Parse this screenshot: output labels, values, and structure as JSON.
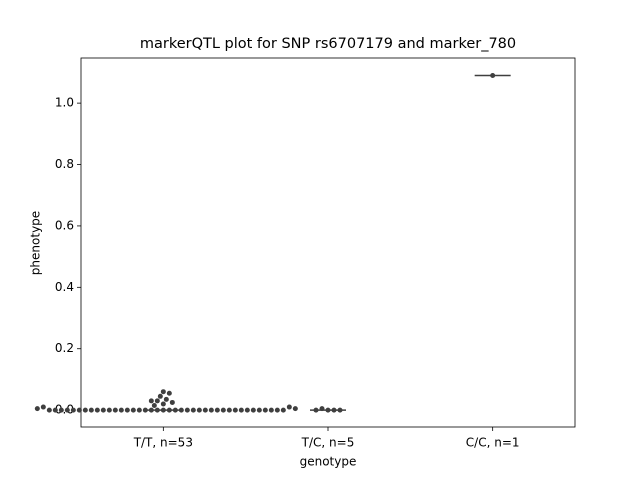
{
  "chart_data": {
    "type": "swarm",
    "title": "markerQTL plot for SNP rs6707179 and marker_780",
    "x_label": "genotype",
    "y_label": "phenotype",
    "categories": [
      "T/T, n=53",
      "T/C, n=5",
      "C/C, n=1"
    ],
    "values": [
      [
        0,
        0,
        0,
        0,
        0,
        0,
        0,
        0,
        0,
        0,
        0,
        0,
        0,
        0,
        0,
        0,
        0,
        0,
        0,
        0,
        0,
        0,
        0,
        0,
        0,
        0,
        0,
        0,
        0,
        0,
        0,
        0,
        0,
        0,
        0,
        0,
        0,
        0,
        0,
        0,
        0.06,
        0.055,
        0.045,
        0.035,
        0.03,
        0.025,
        0.02,
        0.015,
        0.01,
        0.01,
        0.005,
        0.005,
        0.03
      ],
      [
        0,
        0,
        0.005,
        0,
        0
      ],
      [
        1.09
      ]
    ],
    "medians": [
      0,
      0,
      1.09
    ],
    "color": "#3f3f3f",
    "ylim": [
      -0.055,
      1.147
    ],
    "yticks": [
      {
        "value": 0,
        "label": "0.0"
      },
      {
        "value": 0.2,
        "label": "0.2"
      },
      {
        "value": 0.4,
        "label": "0.4"
      },
      {
        "value": 0.6,
        "label": "0.6"
      },
      {
        "value": 0.8,
        "label": "0.8"
      },
      {
        "value": 1.0,
        "label": "1.0"
      }
    ]
  }
}
